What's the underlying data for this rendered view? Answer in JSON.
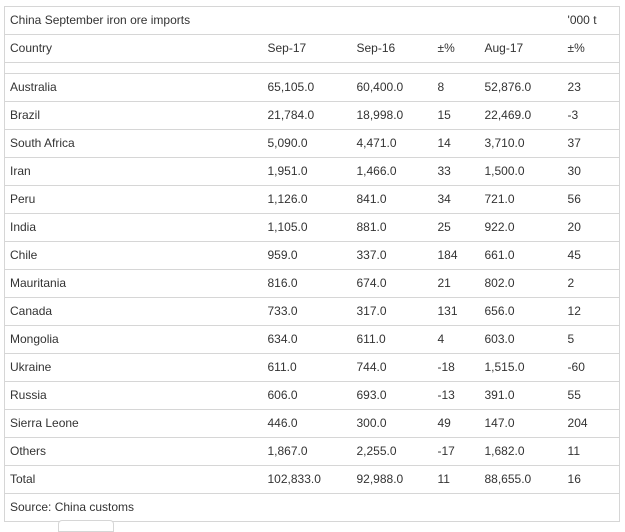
{
  "table": {
    "title": "China September iron ore imports",
    "unit": "'000 t",
    "headers": [
      "Country",
      "Sep-17",
      "Sep-16",
      "±%",
      "Aug-17",
      "±%"
    ],
    "rows": [
      [
        "Australia",
        "65,105.0",
        "60,400.0",
        "8",
        "52,876.0",
        "23"
      ],
      [
        "Brazil",
        "21,784.0",
        "18,998.0",
        "15",
        "22,469.0",
        "-3"
      ],
      [
        "South Africa",
        "5,090.0",
        "4,471.0",
        "14",
        "3,710.0",
        "37"
      ],
      [
        "Iran",
        "1,951.0",
        "1,466.0",
        "33",
        "1,500.0",
        "30"
      ],
      [
        "Peru",
        "1,126.0",
        "841.0",
        "34",
        "721.0",
        "56"
      ],
      [
        "India",
        "1,105.0",
        "881.0",
        "25",
        "922.0",
        "20"
      ],
      [
        "Chile",
        "959.0",
        "337.0",
        "184",
        "661.0",
        "45"
      ],
      [
        "Mauritania",
        "816.0",
        "674.0",
        "21",
        "802.0",
        "2"
      ],
      [
        "Canada",
        "733.0",
        "317.0",
        "131",
        "656.0",
        "12"
      ],
      [
        "Mongolia",
        "634.0",
        "611.0",
        "4",
        "603.0",
        "5"
      ],
      [
        "Ukraine",
        "611.0",
        "744.0",
        "-18",
        "1,515.0",
        "-60"
      ],
      [
        "Russia",
        "606.0",
        "693.0",
        "-13",
        "391.0",
        "55"
      ],
      [
        "Sierra Leone",
        "446.0",
        "300.0",
        "49",
        "147.0",
        "204"
      ],
      [
        "Others",
        "1,867.0",
        "2,255.0",
        "-17",
        "1,682.0",
        "11"
      ],
      [
        "Total",
        "102,833.0",
        "92,988.0",
        "11",
        "88,655.0",
        "16"
      ]
    ],
    "source": "Source: China customs"
  }
}
